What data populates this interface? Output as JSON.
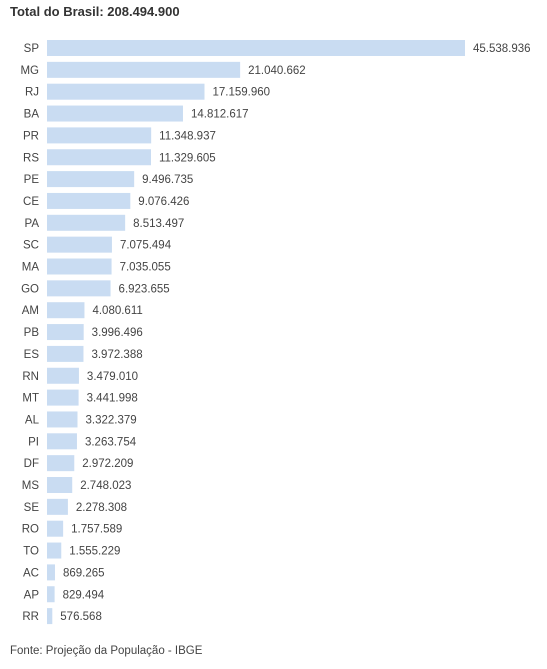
{
  "header": {
    "title": "Total do Brasil: 208.494.900"
  },
  "footer": {
    "source": "Fonte: Projeção da População - IBGE"
  },
  "colors": {
    "bar": "#c9dcf2",
    "text": "#444444"
  },
  "chart_data": {
    "type": "bar",
    "orientation": "horizontal",
    "categories": [
      "SP",
      "MG",
      "RJ",
      "BA",
      "PR",
      "RS",
      "PE",
      "CE",
      "PA",
      "SC",
      "MA",
      "GO",
      "AM",
      "PB",
      "ES",
      "RN",
      "MT",
      "AL",
      "PI",
      "DF",
      "MS",
      "SE",
      "RO",
      "TO",
      "AC",
      "AP",
      "RR"
    ],
    "values": [
      45538936,
      21040662,
      17159960,
      14812617,
      11348937,
      11329605,
      9496735,
      9076426,
      8513497,
      7075494,
      7035055,
      6923655,
      4080611,
      3996496,
      3972388,
      3479010,
      3441998,
      3322379,
      3263754,
      2972209,
      2748023,
      2278308,
      1757589,
      1555229,
      869265,
      829494,
      576568
    ],
    "value_labels": [
      "45.538.936",
      "21.040.662",
      "17.159.960",
      "14.812.617",
      "11.348.937",
      "11.329.605",
      "9.496.735",
      "9.076.426",
      "8.513.497",
      "7.075.494",
      "7.035.055",
      "6.923.655",
      "4.080.611",
      "3.996.496",
      "3.972.388",
      "3.479.010",
      "3.441.998",
      "3.322.379",
      "3.263.754",
      "2.972.209",
      "2.748.023",
      "2.278.308",
      "1.757.589",
      "1.555.229",
      "869.265",
      "829.494",
      "576.568"
    ],
    "grid": false,
    "legend": "none"
  }
}
